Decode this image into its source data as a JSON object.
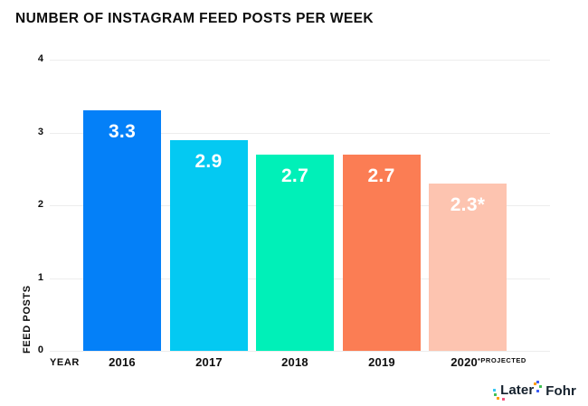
{
  "title": "NUMBER OF INSTAGRAM FEED POSTS PER WEEK",
  "chart_data": {
    "type": "bar",
    "title": "NUMBER OF INSTAGRAM FEED POSTS PER WEEK",
    "xlabel": "YEAR",
    "ylabel": "FEED POSTS",
    "ylim": [
      0,
      4
    ],
    "yticks": [
      0,
      1,
      2,
      3,
      4
    ],
    "grid": "horizontal-light",
    "legend": "none",
    "categories": [
      "2016",
      "2017",
      "2018",
      "2019",
      "2020"
    ],
    "category_notes": [
      "",
      "",
      "",
      "",
      "*PROJECTED"
    ],
    "values": [
      3.3,
      2.9,
      2.7,
      2.7,
      2.3
    ],
    "value_labels": [
      "3.3",
      "2.9",
      "2.7",
      "2.7",
      "2.3*"
    ],
    "bar_colors": [
      "#0480f8",
      "#04c9f2",
      "#00f0b8",
      "#fb7d54",
      "#fdc4b0"
    ],
    "value_label_color": "#ffffff",
    "gridline_color": "#ededed",
    "axis_text_color": "#0e0e0e"
  },
  "footer": {
    "later_logo_text": "Later",
    "fohr_logo_text": "Fohr",
    "later_confetti_colors": [
      "#35c7f4",
      "#3fbf52",
      "#ff9d00",
      "#f4527c",
      "#3c5cf5",
      "#3fbf52",
      "#3c5cf5",
      "#ff9d00"
    ]
  }
}
